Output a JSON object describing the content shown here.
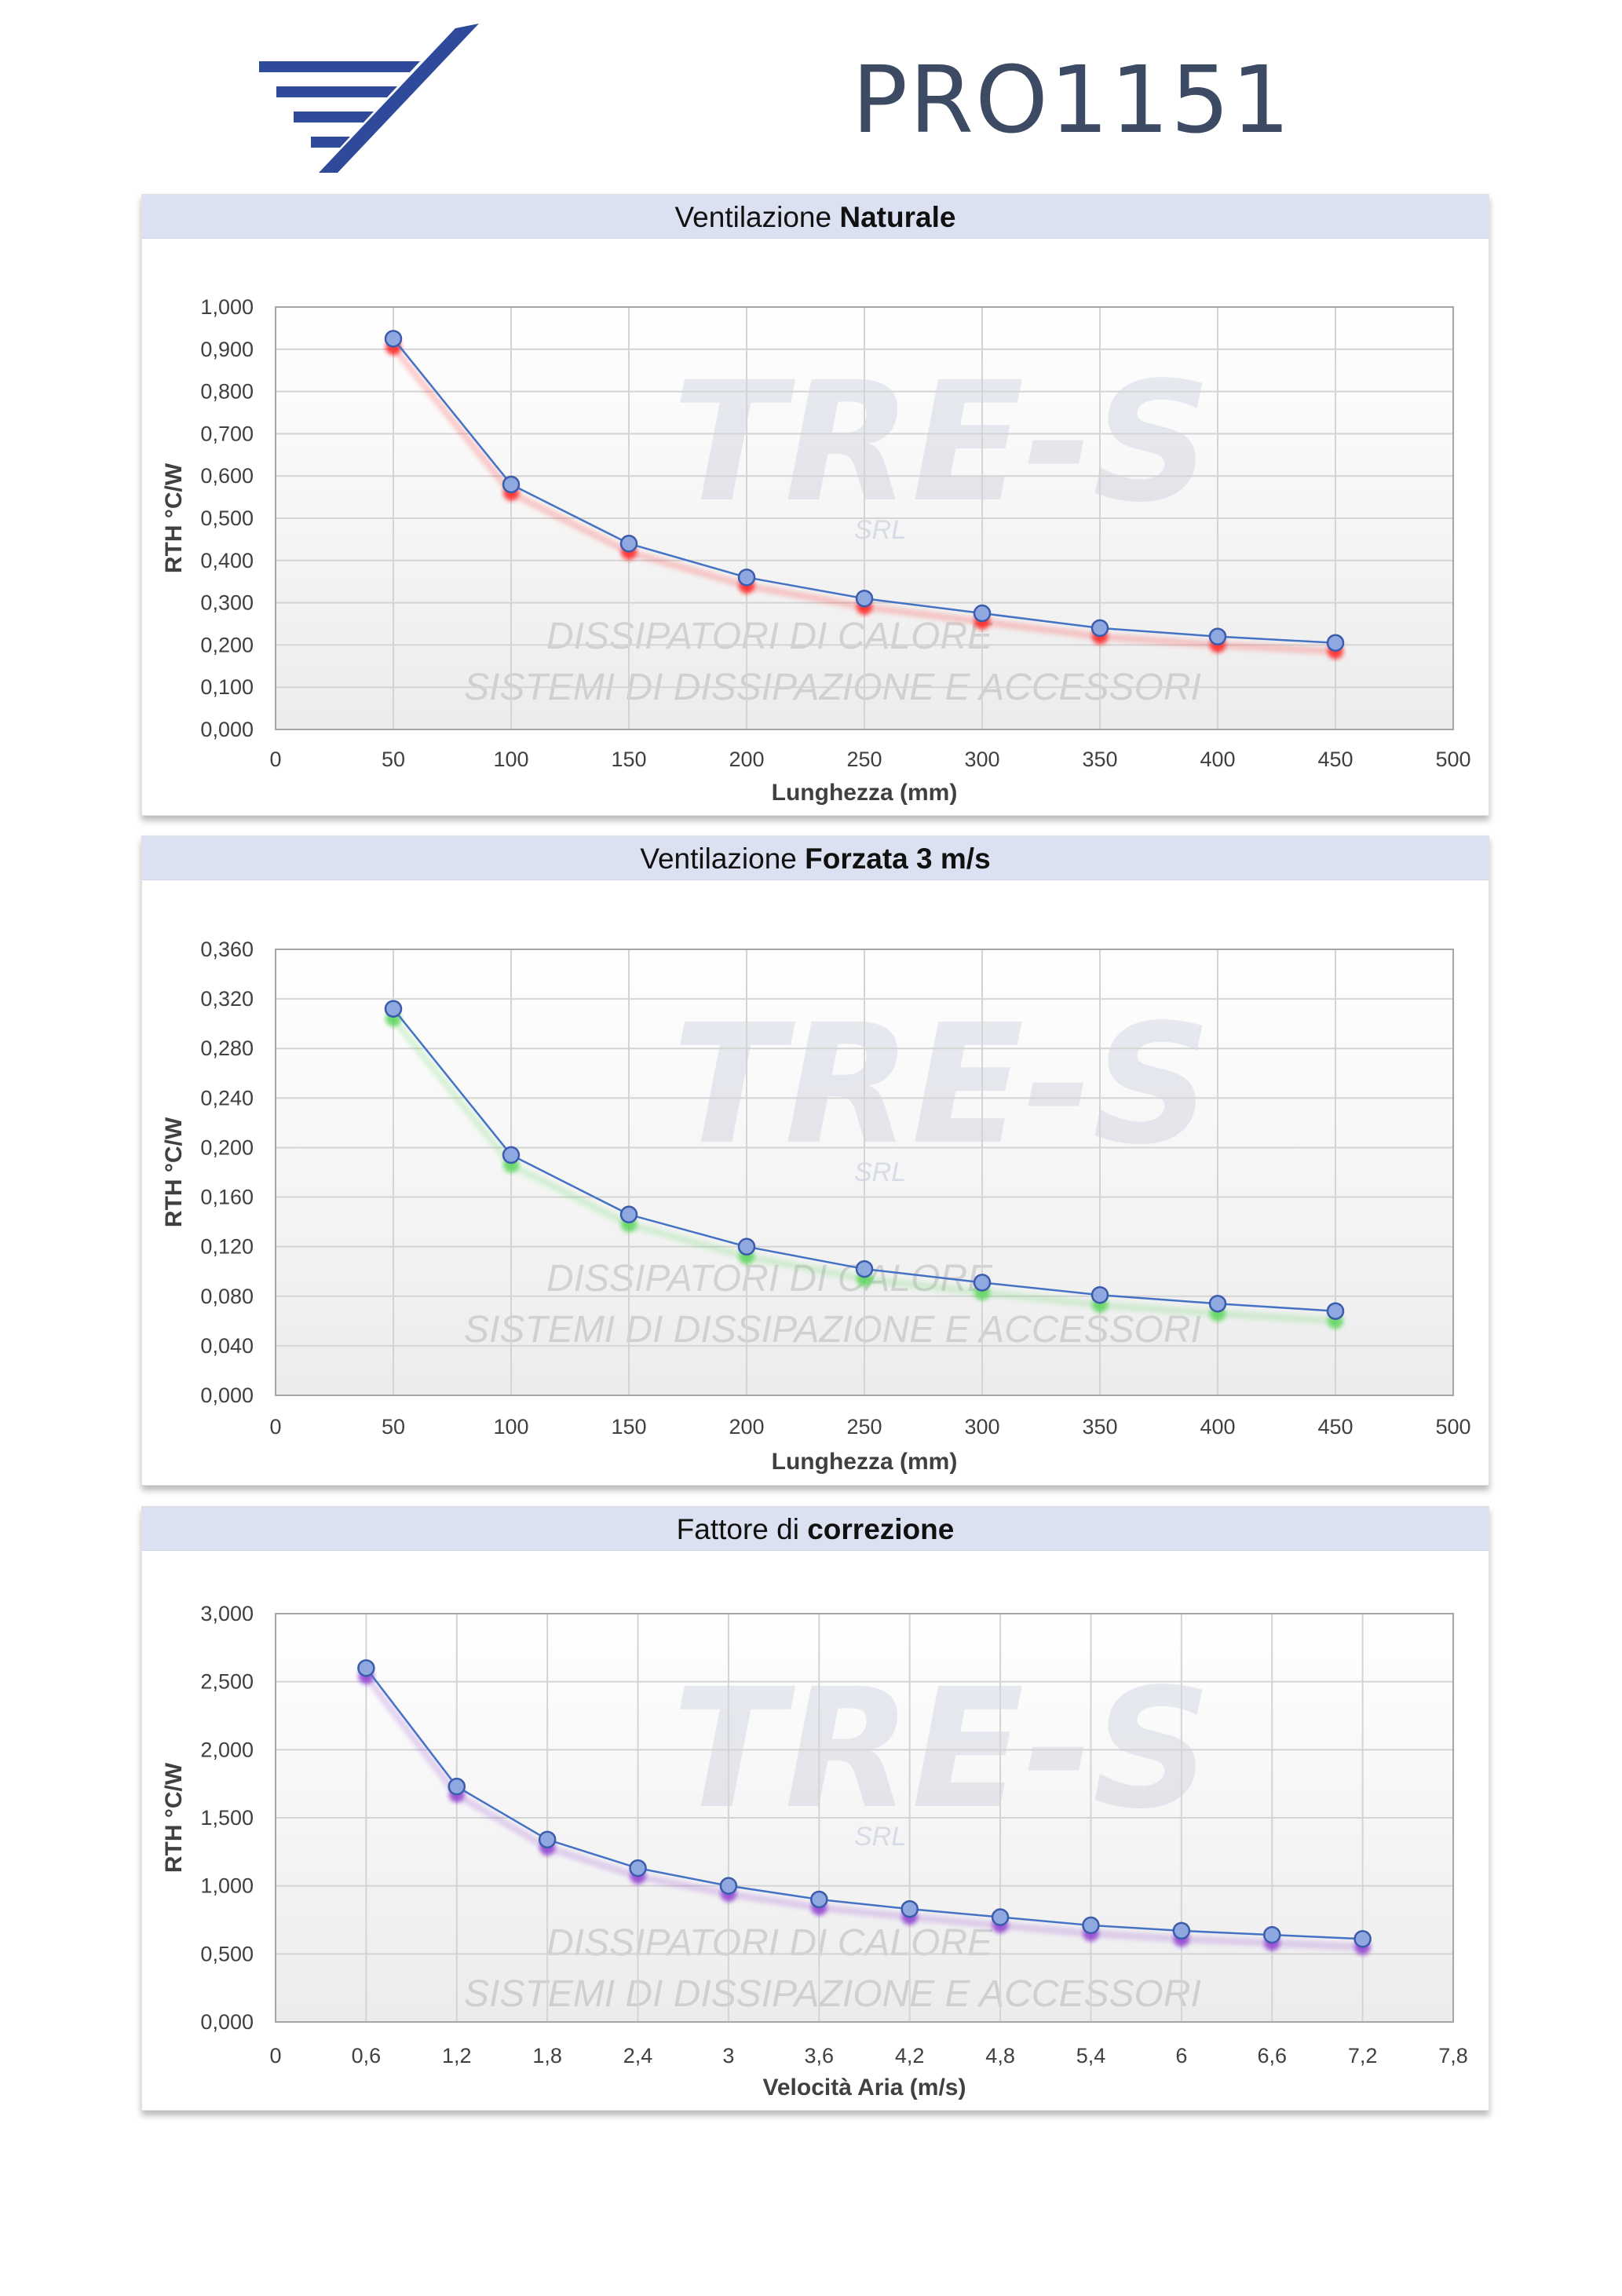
{
  "document": {
    "title": "PRO1151",
    "logo_icon": "tre-s-wing-logo-icon",
    "brand_color": "#2f4a9a"
  },
  "watermark": {
    "brand": "TRE-S",
    "srl": "SRL",
    "line1": "DISSIPATORI DI CALORE",
    "line2": "SISTEMI DI DISSIPAZIONE E ACCESSORI"
  },
  "panels": [
    {
      "title_normal": "Ventilazione ",
      "title_bold": "Naturale"
    },
    {
      "title_normal": "Ventilazione ",
      "title_bold": "Forzata 3 m/s"
    },
    {
      "title_normal": "Fattore di ",
      "title_bold": "correzione"
    }
  ],
  "chart_data": [
    {
      "type": "line",
      "xlabel": "Lunghezza (mm)",
      "ylabel": "RTH °C/W",
      "xlim": [
        0,
        500
      ],
      "ylim": [
        0,
        1.0
      ],
      "x_ticks": [
        "0",
        "50",
        "100",
        "150",
        "200",
        "250",
        "300",
        "350",
        "400",
        "450",
        "500"
      ],
      "y_ticks": [
        "0,000",
        "0,100",
        "0,200",
        "0,300",
        "0,400",
        "0,500",
        "0,600",
        "0,700",
        "0,800",
        "0,900",
        "1,000"
      ],
      "grid": true,
      "series": [
        {
          "color": "#4472c4",
          "x": [
            50,
            100,
            150,
            200,
            250,
            300,
            350,
            400,
            450
          ],
          "y": [
            0.925,
            0.58,
            0.44,
            0.36,
            0.31,
            0.275,
            0.24,
            0.22,
            0.205
          ]
        },
        {
          "color": "#ff2020",
          "style": "shadow",
          "x": [
            50,
            100,
            150,
            200,
            250,
            300,
            350,
            400,
            450
          ],
          "y": [
            0.905,
            0.56,
            0.42,
            0.34,
            0.29,
            0.255,
            0.22,
            0.2,
            0.185
          ]
        }
      ]
    },
    {
      "type": "line",
      "xlabel": "Lunghezza (mm)",
      "ylabel": "RTH °C/W",
      "xlim": [
        0,
        500
      ],
      "ylim": [
        0,
        0.36
      ],
      "x_ticks": [
        "0",
        "50",
        "100",
        "150",
        "200",
        "250",
        "300",
        "350",
        "400",
        "450",
        "500"
      ],
      "y_ticks": [
        "0,000",
        "0,040",
        "0,080",
        "0,120",
        "0,160",
        "0,200",
        "0,240",
        "0,280",
        "0,320",
        "0,360"
      ],
      "grid": true,
      "series": [
        {
          "color": "#4472c4",
          "x": [
            50,
            100,
            150,
            200,
            250,
            300,
            350,
            400,
            450
          ],
          "y": [
            0.312,
            0.194,
            0.146,
            0.12,
            0.102,
            0.091,
            0.081,
            0.074,
            0.068
          ]
        },
        {
          "color": "#5cd65c",
          "style": "shadow",
          "x": [
            50,
            100,
            150,
            200,
            250,
            300,
            350,
            400,
            450
          ],
          "y": [
            0.304,
            0.186,
            0.138,
            0.112,
            0.094,
            0.083,
            0.073,
            0.066,
            0.06
          ]
        }
      ]
    },
    {
      "type": "line",
      "xlabel": "Velocità Aria (m/s)",
      "ylabel": "RTH °C/W",
      "xlim": [
        0,
        7.8
      ],
      "ylim": [
        0,
        3.0
      ],
      "x_ticks": [
        "0",
        "0,6",
        "1,2",
        "1,8",
        "2,4",
        "3",
        "3,6",
        "4,2",
        "4,8",
        "5,4",
        "6",
        "6,6",
        "7,2",
        "7,8"
      ],
      "y_ticks": [
        "0,000",
        "0,500",
        "1,000",
        "1,500",
        "2,000",
        "2,500",
        "3,000"
      ],
      "grid": true,
      "series": [
        {
          "color": "#4472c4",
          "x": [
            0.6,
            1.2,
            1.8,
            2.4,
            3.0,
            3.6,
            4.2,
            4.8,
            5.4,
            6.0,
            6.6,
            7.2
          ],
          "y": [
            2.6,
            1.73,
            1.34,
            1.13,
            1.0,
            0.9,
            0.83,
            0.77,
            0.71,
            0.67,
            0.64,
            0.61
          ]
        },
        {
          "color": "#9040d0",
          "style": "shadow",
          "x": [
            0.6,
            1.2,
            1.8,
            2.4,
            3.0,
            3.6,
            4.2,
            4.8,
            5.4,
            6.0,
            6.6,
            7.2
          ],
          "y": [
            2.54,
            1.67,
            1.28,
            1.07,
            0.94,
            0.84,
            0.77,
            0.71,
            0.65,
            0.61,
            0.58,
            0.55
          ]
        }
      ]
    }
  ]
}
